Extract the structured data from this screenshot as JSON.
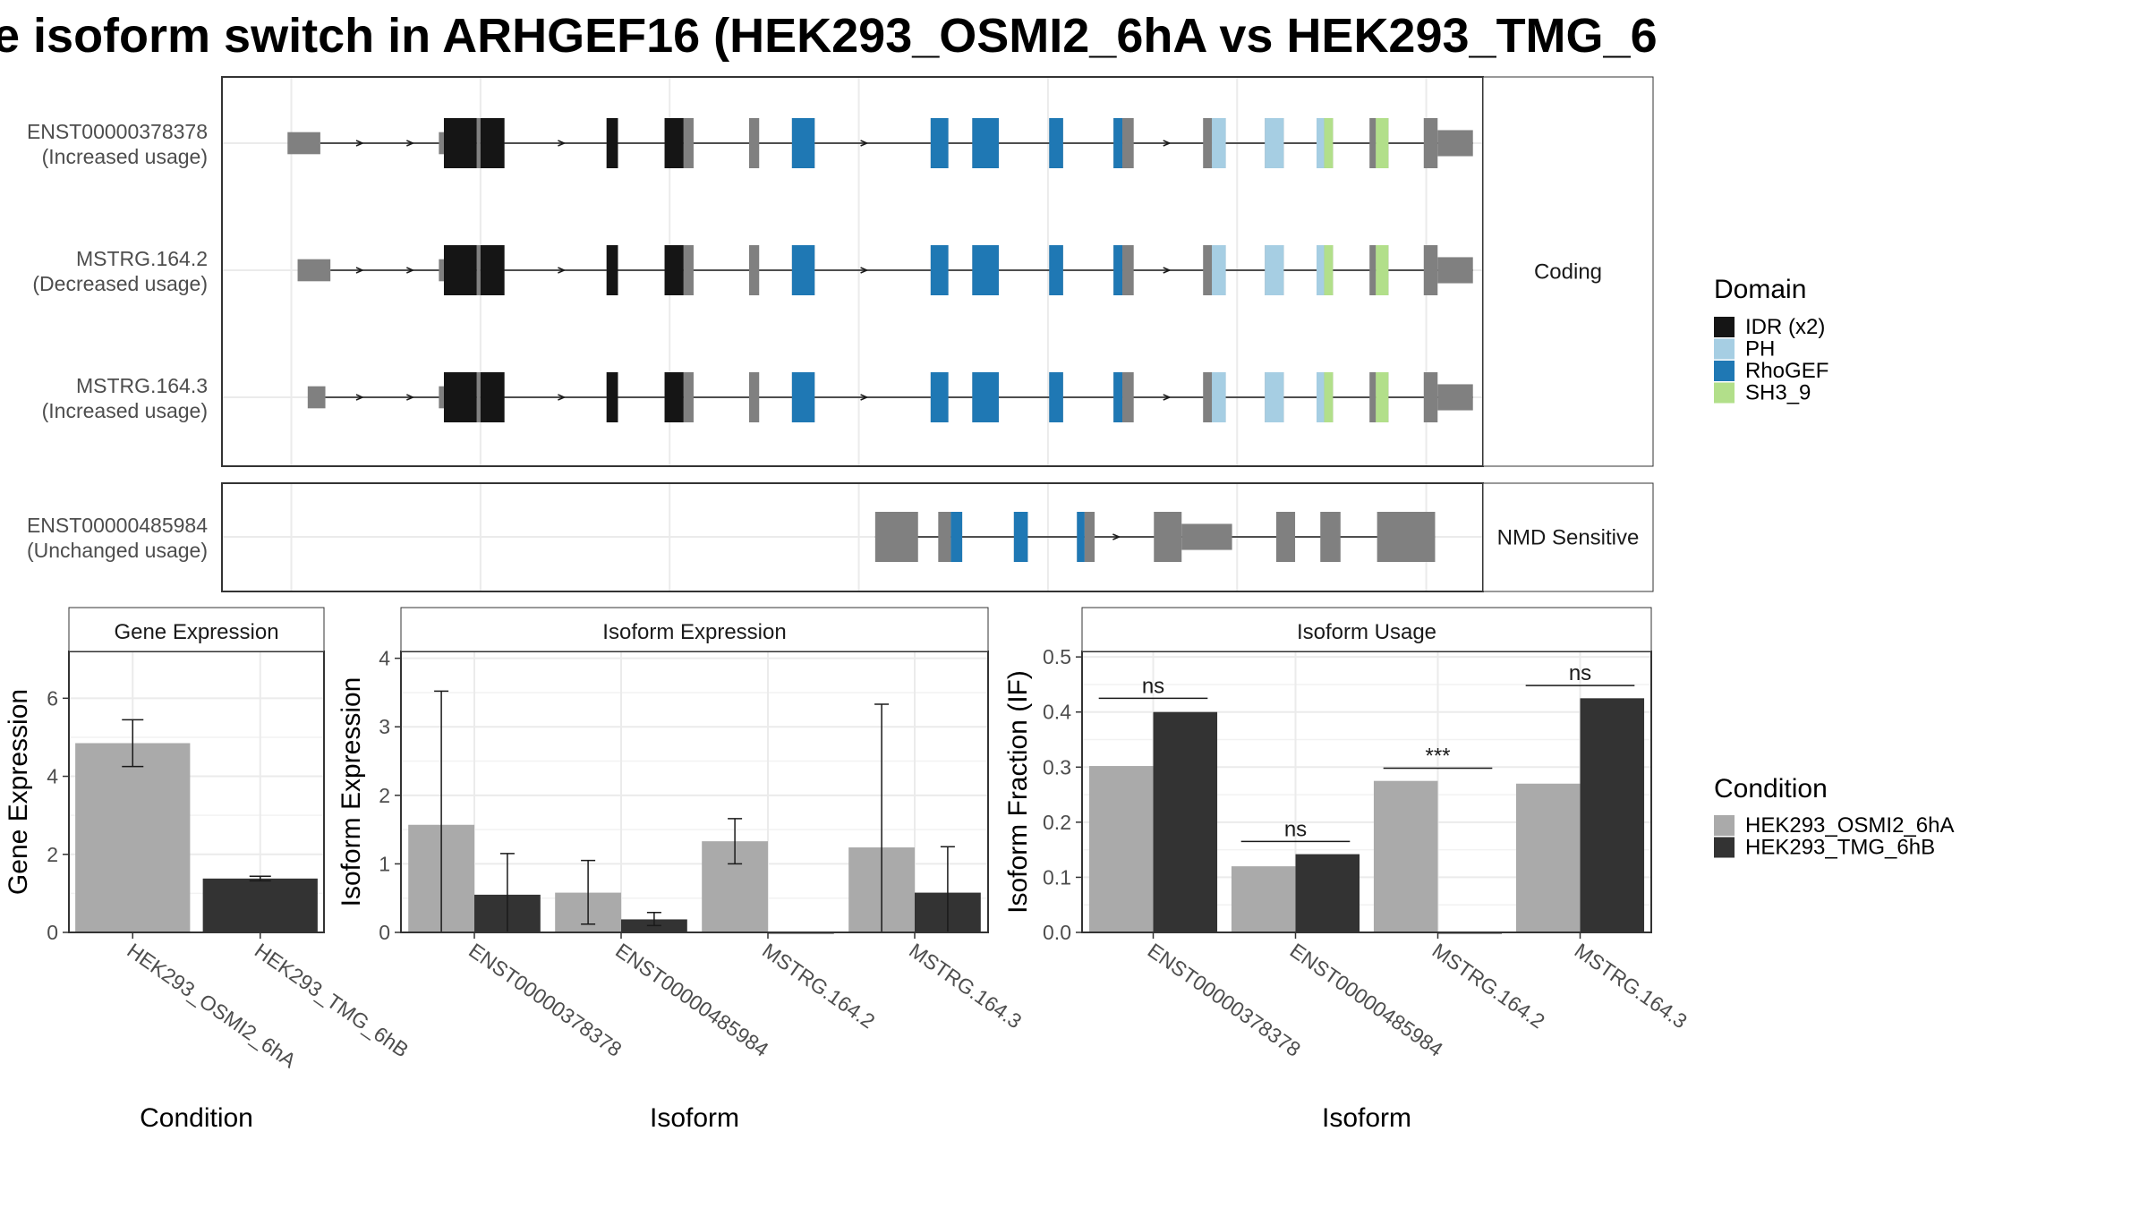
{
  "title": "e isoform switch in ARHGEF16 (HEK293_OSMI2_6hA vs HEK293_TMG_6",
  "colors": {
    "IDR": "#151515",
    "PH": "#a6cee3",
    "RhoGEF": "#1f78b4",
    "SH3_9": "#b2df8a",
    "exon": "#808080",
    "cond_a": "#aaaaaa",
    "cond_b": "#333333"
  },
  "structure": {
    "genomic_ticks": [
      0.055,
      0.205,
      0.355,
      0.505,
      0.655,
      0.805,
      0.955
    ],
    "panels": [
      {
        "strip": "Coding",
        "transcripts": [
          {
            "id": "ENST00000378378",
            "usage": "(Increased usage)",
            "exons": [
              [
                0.052,
                0.078,
                0.44
              ],
              [
                0.172,
                0.176,
                0.44
              ],
              [
                0.176,
                0.202,
                1
              ],
              [
                0.202,
                0.205,
                1
              ],
              [
                0.205,
                0.224,
                1
              ],
              [
                0.305,
                0.314,
                1
              ],
              [
                0.351,
                0.366,
                1
              ],
              [
                0.366,
                0.374,
                1
              ],
              [
                0.418,
                0.426,
                1
              ],
              [
                0.452,
                0.47,
                1
              ],
              [
                0.562,
                0.576,
                1
              ],
              [
                0.595,
                0.616,
                1
              ],
              [
                0.656,
                0.667,
                1
              ],
              [
                0.707,
                0.714,
                1
              ],
              [
                0.714,
                0.723,
                1
              ],
              [
                0.778,
                0.785,
                1
              ],
              [
                0.785,
                0.796,
                1
              ],
              [
                0.827,
                0.842,
                1
              ],
              [
                0.868,
                0.874,
                1
              ],
              [
                0.874,
                0.881,
                1
              ],
              [
                0.91,
                0.915,
                1
              ],
              [
                0.915,
                0.925,
                1
              ],
              [
                0.953,
                0.964,
                1
              ],
              [
                0.964,
                0.992,
                0.52
              ]
            ],
            "domains": [
              [
                0.176,
                0.202,
                "IDR"
              ],
              [
                0.205,
                0.224,
                "IDR"
              ],
              [
                0.305,
                0.314,
                "IDR"
              ],
              [
                0.351,
                0.366,
                "IDR"
              ],
              [
                0.452,
                0.47,
                "RhoGEF"
              ],
              [
                0.562,
                0.576,
                "RhoGEF"
              ],
              [
                0.595,
                0.616,
                "RhoGEF"
              ],
              [
                0.656,
                0.667,
                "RhoGEF"
              ],
              [
                0.707,
                0.714,
                "RhoGEF"
              ],
              [
                0.785,
                0.796,
                "PH"
              ],
              [
                0.827,
                0.842,
                "PH"
              ],
              [
                0.868,
                0.874,
                "PH"
              ],
              [
                0.874,
                0.881,
                "SH3_9"
              ],
              [
                0.915,
                0.925,
                "SH3_9"
              ]
            ],
            "intron_start": 0.078,
            "arrows": [
              0.11,
              0.15,
              0.27,
              0.51,
              0.75
            ]
          },
          {
            "id": "MSTRG.164.2",
            "usage": "(Decreased usage)",
            "exons": [
              [
                0.06,
                0.086,
                0.44
              ],
              [
                0.172,
                0.176,
                0.44
              ],
              [
                0.176,
                0.202,
                1
              ],
              [
                0.202,
                0.205,
                1
              ],
              [
                0.205,
                0.224,
                1
              ],
              [
                0.305,
                0.314,
                1
              ],
              [
                0.351,
                0.366,
                1
              ],
              [
                0.366,
                0.374,
                1
              ],
              [
                0.418,
                0.426,
                1
              ],
              [
                0.452,
                0.47,
                1
              ],
              [
                0.562,
                0.576,
                1
              ],
              [
                0.595,
                0.616,
                1
              ],
              [
                0.656,
                0.667,
                1
              ],
              [
                0.707,
                0.714,
                1
              ],
              [
                0.714,
                0.723,
                1
              ],
              [
                0.778,
                0.785,
                1
              ],
              [
                0.785,
                0.796,
                1
              ],
              [
                0.827,
                0.842,
                1
              ],
              [
                0.868,
                0.874,
                1
              ],
              [
                0.874,
                0.881,
                1
              ],
              [
                0.91,
                0.915,
                1
              ],
              [
                0.915,
                0.925,
                1
              ],
              [
                0.953,
                0.964,
                1
              ],
              [
                0.964,
                0.992,
                0.52
              ]
            ],
            "domains": [
              [
                0.176,
                0.202,
                "IDR"
              ],
              [
                0.205,
                0.224,
                "IDR"
              ],
              [
                0.305,
                0.314,
                "IDR"
              ],
              [
                0.351,
                0.366,
                "IDR"
              ],
              [
                0.452,
                0.47,
                "RhoGEF"
              ],
              [
                0.562,
                0.576,
                "RhoGEF"
              ],
              [
                0.595,
                0.616,
                "RhoGEF"
              ],
              [
                0.656,
                0.667,
                "RhoGEF"
              ],
              [
                0.707,
                0.714,
                "RhoGEF"
              ],
              [
                0.785,
                0.796,
                "PH"
              ],
              [
                0.827,
                0.842,
                "PH"
              ],
              [
                0.868,
                0.874,
                "PH"
              ],
              [
                0.874,
                0.881,
                "SH3_9"
              ],
              [
                0.915,
                0.925,
                "SH3_9"
              ]
            ],
            "intron_start": 0.086,
            "arrows": [
              0.11,
              0.15,
              0.27,
              0.51,
              0.75
            ]
          },
          {
            "id": "MSTRG.164.3",
            "usage": "(Increased usage)",
            "exons": [
              [
                0.068,
                0.082,
                0.44
              ],
              [
                0.172,
                0.176,
                0.44
              ],
              [
                0.176,
                0.202,
                1
              ],
              [
                0.202,
                0.205,
                1
              ],
              [
                0.205,
                0.224,
                1
              ],
              [
                0.305,
                0.314,
                1
              ],
              [
                0.351,
                0.366,
                1
              ],
              [
                0.366,
                0.374,
                1
              ],
              [
                0.418,
                0.426,
                1
              ],
              [
                0.452,
                0.47,
                1
              ],
              [
                0.562,
                0.576,
                1
              ],
              [
                0.595,
                0.616,
                1
              ],
              [
                0.656,
                0.667,
                1
              ],
              [
                0.707,
                0.714,
                1
              ],
              [
                0.714,
                0.723,
                1
              ],
              [
                0.778,
                0.785,
                1
              ],
              [
                0.785,
                0.796,
                1
              ],
              [
                0.827,
                0.842,
                1
              ],
              [
                0.868,
                0.874,
                1
              ],
              [
                0.874,
                0.881,
                1
              ],
              [
                0.91,
                0.915,
                1
              ],
              [
                0.915,
                0.925,
                1
              ],
              [
                0.953,
                0.964,
                1
              ],
              [
                0.964,
                0.992,
                0.52
              ]
            ],
            "domains": [
              [
                0.176,
                0.202,
                "IDR"
              ],
              [
                0.205,
                0.224,
                "IDR"
              ],
              [
                0.305,
                0.314,
                "IDR"
              ],
              [
                0.351,
                0.366,
                "IDR"
              ],
              [
                0.452,
                0.47,
                "RhoGEF"
              ],
              [
                0.562,
                0.576,
                "RhoGEF"
              ],
              [
                0.595,
                0.616,
                "RhoGEF"
              ],
              [
                0.656,
                0.667,
                "RhoGEF"
              ],
              [
                0.707,
                0.714,
                "RhoGEF"
              ],
              [
                0.785,
                0.796,
                "PH"
              ],
              [
                0.827,
                0.842,
                "PH"
              ],
              [
                0.868,
                0.874,
                "PH"
              ],
              [
                0.874,
                0.881,
                "SH3_9"
              ],
              [
                0.915,
                0.925,
                "SH3_9"
              ]
            ],
            "intron_start": 0.082,
            "arrows": [
              0.11,
              0.15,
              0.27,
              0.51,
              0.75
            ]
          }
        ]
      },
      {
        "strip": "NMD Sensitive",
        "transcripts": [
          {
            "id": "ENST00000485984",
            "usage": "(Unchanged usage)",
            "exons": [
              [
                0.518,
                0.552,
                1
              ],
              [
                0.568,
                0.578,
                1
              ],
              [
                0.578,
                0.587,
                1
              ],
              [
                0.628,
                0.639,
                1
              ],
              [
                0.678,
                0.684,
                1
              ],
              [
                0.684,
                0.692,
                1
              ],
              [
                0.739,
                0.761,
                1
              ],
              [
                0.761,
                0.801,
                0.52
              ],
              [
                0.836,
                0.851,
                1
              ],
              [
                0.871,
                0.887,
                1
              ],
              [
                0.916,
                0.962,
                1
              ]
            ],
            "domains": [
              [
                0.578,
                0.587,
                "RhoGEF"
              ],
              [
                0.628,
                0.639,
                "RhoGEF"
              ],
              [
                0.678,
                0.684,
                "RhoGEF"
              ]
            ],
            "intron_start": 0.518,
            "arrows": [
              0.71
            ]
          }
        ]
      }
    ]
  },
  "legend_domain": {
    "title": "Domain",
    "items": [
      {
        "label": "IDR (x2)",
        "key": "IDR"
      },
      {
        "label": "PH",
        "key": "PH"
      },
      {
        "label": "RhoGEF",
        "key": "RhoGEF"
      },
      {
        "label": "SH3_9",
        "key": "SH3_9"
      }
    ]
  },
  "legend_condition": {
    "title": "Condition",
    "items": [
      {
        "label": "HEK293_OSMI2_6hA",
        "key": "cond_a"
      },
      {
        "label": "HEK293_TMG_6hB",
        "key": "cond_b"
      }
    ]
  },
  "chart_data": [
    {
      "type": "bar",
      "strip": "Gene Expression",
      "xlabel": "Condition",
      "ylabel": "Gene Expression",
      "ylim": [
        0,
        7.2
      ],
      "yticks": [
        0,
        2,
        4,
        6
      ],
      "categories": [
        "HEK293_OSMI2_6hA",
        "HEK293_TMG_6hB"
      ],
      "values": [
        4.85,
        1.38
      ],
      "errors": [
        [
          4.25,
          5.45
        ],
        [
          1.32,
          1.44
        ]
      ],
      "colors": [
        "cond_a",
        "cond_b"
      ]
    },
    {
      "type": "bar",
      "strip": "Isoform Expression",
      "xlabel": "Isoform",
      "ylabel": "Isoform Expression",
      "ylim": [
        0,
        4.1
      ],
      "yticks": [
        0,
        1,
        2,
        3,
        4
      ],
      "categories": [
        "ENST00000378378",
        "ENST00000485984",
        "MSTRG.164.2",
        "MSTRG.164.3"
      ],
      "series": [
        {
          "name": "HEK293_OSMI2_6hA",
          "values": [
            1.57,
            0.58,
            1.33,
            1.24
          ],
          "errors": [
            [
              0,
              3.52
            ],
            [
              0.12,
              1.05
            ],
            [
              1.0,
              1.66
            ],
            [
              0,
              3.33
            ]
          ]
        },
        {
          "name": "HEK293_TMG_6hB",
          "values": [
            0.55,
            0.19,
            0,
            0.58
          ],
          "errors": [
            [
              0,
              1.15
            ],
            [
              0.1,
              0.29
            ],
            [
              0,
              0
            ],
            [
              0,
              1.25
            ]
          ]
        }
      ]
    },
    {
      "type": "bar",
      "strip": "Isoform Usage",
      "xlabel": "Isoform",
      "ylabel": "Isoform Fraction (IF)",
      "ylim": [
        0,
        0.51
      ],
      "yticks": [
        0.0,
        0.1,
        0.2,
        0.3,
        0.4,
        0.5
      ],
      "categories": [
        "ENST00000378378",
        "ENST00000485984",
        "MSTRG.164.2",
        "MSTRG.164.3"
      ],
      "series": [
        {
          "name": "HEK293_OSMI2_6hA",
          "values": [
            0.302,
            0.12,
            0.275,
            0.27
          ]
        },
        {
          "name": "HEK293_TMG_6hB",
          "values": [
            0.4,
            0.142,
            0,
            0.425
          ]
        }
      ],
      "significance": [
        {
          "label": "ns",
          "y": 0.425
        },
        {
          "label": "ns",
          "y": 0.165
        },
        {
          "label": "***",
          "y": 0.298
        },
        {
          "label": "ns",
          "y": 0.448
        }
      ]
    }
  ]
}
